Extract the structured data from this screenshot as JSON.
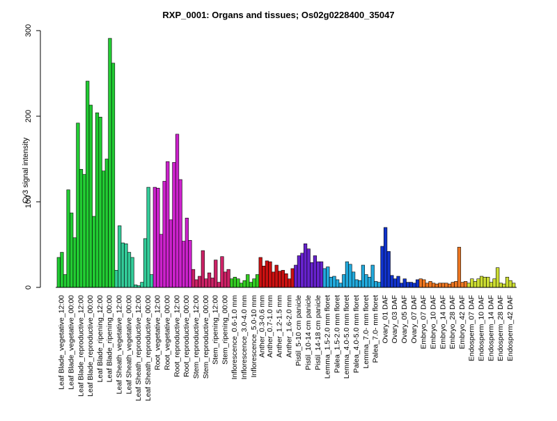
{
  "chart_data": {
    "type": "bar",
    "title": "RXP_0001: Organs and tissues; Os02g0228400_35047",
    "ylabel": "Cy3 signal intensity",
    "ylim": [
      0,
      300
    ],
    "yticks": [
      0,
      100,
      200,
      300
    ],
    "grid": false,
    "groups": [
      {
        "label": "Leaf Blade_vegetative_12:00",
        "color": "#22cc33",
        "values": [
          35,
          41,
          15
        ]
      },
      {
        "label": "Leaf Blade_vegetative_00:00",
        "color": "#22cc33",
        "values": [
          114,
          87,
          58
        ]
      },
      {
        "label": "Leaf Blade_reproductive_12:00",
        "color": "#22cc33",
        "values": [
          192,
          138,
          132
        ]
      },
      {
        "label": "Leaf Blade_reproductive_00:00",
        "color": "#22cc33",
        "values": [
          241,
          213,
          83
        ]
      },
      {
        "label": "Leaf Blade_ripening_12:00",
        "color": "#22cc33",
        "values": [
          204,
          199,
          136
        ]
      },
      {
        "label": "Leaf Blade_ripening_00:00",
        "color": "#22cc33",
        "values": [
          150,
          291,
          262
        ]
      },
      {
        "label": "Leaf Sheath_vegetative_12:00",
        "color": "#33cc99",
        "values": [
          20,
          72,
          52
        ]
      },
      {
        "label": "Leaf Sheath_vegetative_00:00",
        "color": "#33cc99",
        "values": [
          51,
          41,
          35
        ]
      },
      {
        "label": "Leaf Sheath_reproductive_12:00",
        "color": "#33cc99",
        "values": [
          3,
          2,
          6
        ]
      },
      {
        "label": "Leaf Sheath_reproductive_00:00",
        "color": "#33cc99",
        "values": [
          57,
          117,
          15
        ]
      },
      {
        "label": "Root_vegetative_12:00",
        "color": "#cc22cc",
        "values": [
          117,
          116,
          62
        ]
      },
      {
        "label": "Root_vegetative_00:00",
        "color": "#cc22cc",
        "values": [
          124,
          147,
          79
        ]
      },
      {
        "label": "Root_reproductive_12:00",
        "color": "#cc22cc",
        "values": [
          146,
          179,
          126
        ]
      },
      {
        "label": "Root_reproductive_00:00",
        "color": "#cc22cc",
        "values": [
          54,
          81,
          55
        ]
      },
      {
        "label": "Stem_reproductive_12:00",
        "color": "#cc2266",
        "values": [
          21,
          9,
          13
        ]
      },
      {
        "label": "Stem_reproductive_00:00",
        "color": "#cc2266",
        "values": [
          43,
          10,
          17
        ]
      },
      {
        "label": "Stem_ripening_12:00",
        "color": "#cc2266",
        "values": [
          11,
          32,
          6
        ]
      },
      {
        "label": "Stem_ripening_00:00",
        "color": "#cc2266",
        "values": [
          36,
          18,
          21
        ]
      },
      {
        "label": "Inflorescence_0.6-1.0 mm",
        "color": "#33cc22",
        "values": [
          10,
          12,
          10
        ]
      },
      {
        "label": "Inflorescence_3.0-4.0 mm",
        "color": "#33cc22",
        "values": [
          5,
          8,
          15
        ]
      },
      {
        "label": "Inflorescence_5.0-10 mm",
        "color": "#33cc22",
        "values": [
          6,
          10,
          15
        ]
      },
      {
        "label": "Anther_0.3-0.6 mm",
        "color": "#cc1111",
        "values": [
          35,
          25
        ]
      },
      {
        "label": "Anther_0.7-1.0 mm",
        "color": "#cc1111",
        "values": [
          31,
          30,
          18
        ]
      },
      {
        "label": "Anther_1.2-1.5 mm",
        "color": "#cc1111",
        "values": [
          26,
          19,
          20
        ]
      },
      {
        "label": "Anther_1.6-2.0 mm",
        "color": "#cc1111",
        "values": [
          16,
          10,
          22
        ]
      },
      {
        "label": "Pistil_5-10 cm panicle",
        "color": "#6622cc",
        "values": [
          26,
          37,
          40
        ]
      },
      {
        "label": "Pistil_10-14 cm panicle",
        "color": "#6622cc",
        "values": [
          51,
          45,
          29
        ]
      },
      {
        "label": "Pistil_14-18 cm panicle",
        "color": "#6622cc",
        "values": [
          37,
          30,
          30
        ]
      },
      {
        "label": "Lemma_1.5-2.0 mm floret",
        "color": "#22aadd",
        "values": [
          22,
          24,
          12
        ]
      },
      {
        "label": "Palea_1.5-2.0 mm floret",
        "color": "#22aadd",
        "values": [
          13,
          9,
          5
        ]
      },
      {
        "label": "Lemma_4.0-5.0 mm floret",
        "color": "#22aadd",
        "values": [
          15,
          30,
          27
        ]
      },
      {
        "label": "Palea_4.0-5.0 mm floret",
        "color": "#22aadd",
        "values": [
          18,
          9,
          8
        ]
      },
      {
        "label": "Lemma_7.0- mm floret",
        "color": "#22aadd",
        "values": [
          26,
          15,
          12
        ]
      },
      {
        "label": "Palea_7.0- mm floret",
        "color": "#22aadd",
        "values": [
          26,
          7,
          6
        ]
      },
      {
        "label": "Ovary_01 DAF",
        "color": "#1133cc",
        "values": [
          48,
          70,
          42
        ]
      },
      {
        "label": "Ovary_03 DAF",
        "color": "#1133cc",
        "values": [
          14,
          10,
          13
        ]
      },
      {
        "label": "Ovary_05 DAF",
        "color": "#1133cc",
        "values": [
          5,
          10,
          6
        ]
      },
      {
        "label": "Ovary_07 DAF",
        "color": "#1133cc",
        "values": [
          6,
          5,
          9
        ]
      },
      {
        "label": "Embryo_07 DAF",
        "color": "#ee7722",
        "values": [
          10,
          9,
          5
        ]
      },
      {
        "label": "Embryo_10 DAF",
        "color": "#ee7722",
        "values": [
          7,
          5,
          4
        ]
      },
      {
        "label": "Embryo_14 DAF",
        "color": "#ee7722",
        "values": [
          5,
          5,
          5
        ]
      },
      {
        "label": "Embryo_28 DAF",
        "color": "#ee7722",
        "values": [
          4,
          6,
          7
        ]
      },
      {
        "label": "Embryo_42 DAF",
        "color": "#ee7722",
        "values": [
          47,
          6,
          7
        ]
      },
      {
        "label": "Endosperm_07 DAF",
        "color": "#ccdd33",
        "values": [
          5,
          10,
          7
        ]
      },
      {
        "label": "Endosperm_10 DAF",
        "color": "#ccdd33",
        "values": [
          10,
          13,
          12
        ]
      },
      {
        "label": "Endosperm_14 DAF",
        "color": "#ccdd33",
        "values": [
          12,
          6,
          10
        ]
      },
      {
        "label": "Endosperm_28 DAF",
        "color": "#ccdd33",
        "values": [
          23,
          5,
          4
        ]
      },
      {
        "label": "Endosperm_42 DAF",
        "color": "#ccdd33",
        "values": [
          12,
          8,
          5
        ]
      }
    ]
  }
}
